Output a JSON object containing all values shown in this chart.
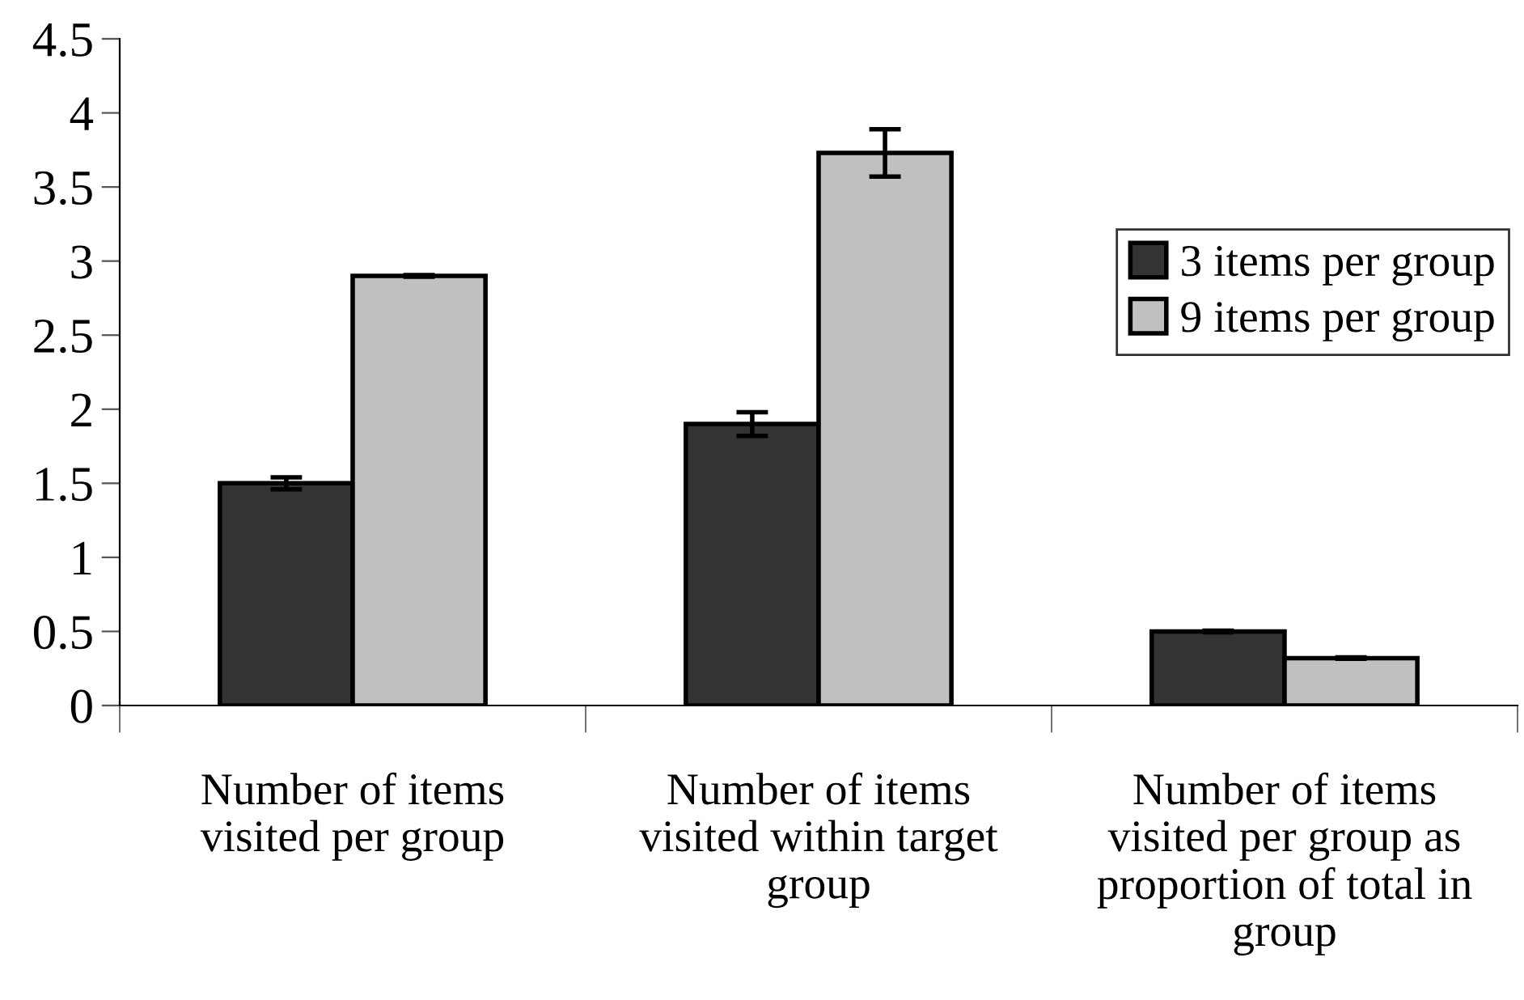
{
  "chart_data": {
    "type": "bar",
    "categories": [
      "Number of items\nvisited per group",
      "Number of items\nvisited within target\ngroup",
      "Number of items\nvisited per group as\nproportion of total in\ngroup"
    ],
    "series": [
      {
        "name": "3 items per group",
        "color": "#333333",
        "values": [
          1.5,
          1.9,
          0.5
        ],
        "errors": [
          0.04,
          0.08,
          0.005
        ]
      },
      {
        "name": "9 items per group",
        "color": "#c0c0c0",
        "values": [
          2.9,
          3.73,
          0.32
        ],
        "errors": [
          0.005,
          0.16,
          0.005
        ]
      }
    ],
    "ylim": [
      0,
      4.5
    ],
    "yticks": [
      0,
      0.5,
      1,
      1.5,
      2,
      2.5,
      3,
      3.5,
      4,
      4.5
    ],
    "grid": false,
    "legend": "right"
  }
}
